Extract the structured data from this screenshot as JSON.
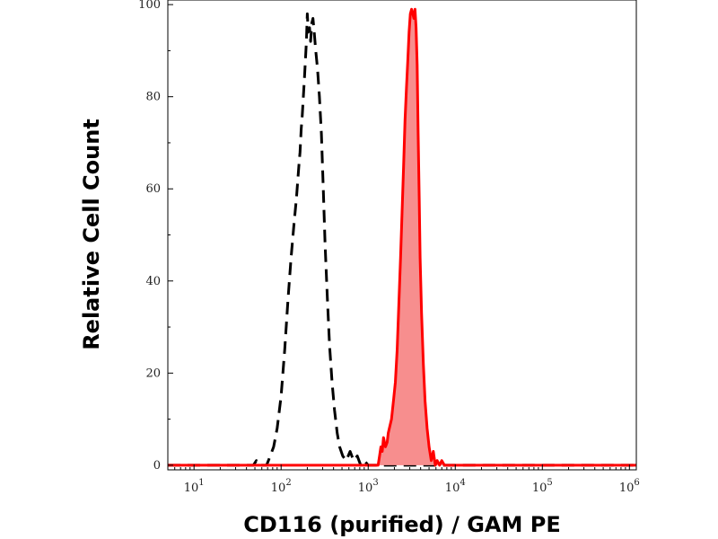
{
  "chart_data": {
    "type": "area",
    "title": "",
    "xlabel": "CD116 (purified) / GAM PE",
    "ylabel": "Relative Cell Count",
    "x_scale": "log",
    "xlim": [
      5,
      1200000
    ],
    "ylim": [
      -1,
      101
    ],
    "x_ticks": [
      {
        "value": 10,
        "base": "10",
        "exp": "1"
      },
      {
        "value": 100,
        "base": "10",
        "exp": "2"
      },
      {
        "value": 1000,
        "base": "10",
        "exp": "3"
      },
      {
        "value": 10000,
        "base": "10",
        "exp": "4"
      },
      {
        "value": 100000,
        "base": "10",
        "exp": "5"
      },
      {
        "value": 1000000,
        "base": "10",
        "exp": "6"
      }
    ],
    "y_ticks": [
      {
        "value": 0,
        "label": "0"
      },
      {
        "value": 20,
        "label": "20"
      },
      {
        "value": 40,
        "label": "40"
      },
      {
        "value": 60,
        "label": "60"
      },
      {
        "value": 80,
        "label": "80"
      },
      {
        "value": 100,
        "label": "100"
      }
    ],
    "grid": false,
    "series": [
      {
        "style": "dashed",
        "color": "#000000",
        "fill": false,
        "points": [
          [
            5,
            0
          ],
          [
            40,
            0
          ],
          [
            48,
            0
          ],
          [
            52,
            1
          ],
          [
            56,
            0
          ],
          [
            62,
            0
          ],
          [
            68,
            0
          ],
          [
            75,
            2
          ],
          [
            82,
            4
          ],
          [
            90,
            8
          ],
          [
            100,
            15
          ],
          [
            110,
            25
          ],
          [
            120,
            36
          ],
          [
            130,
            45
          ],
          [
            140,
            52
          ],
          [
            150,
            58
          ],
          [
            160,
            65
          ],
          [
            165,
            68
          ],
          [
            170,
            73
          ],
          [
            175,
            76
          ],
          [
            180,
            80
          ],
          [
            185,
            84
          ],
          [
            190,
            88
          ],
          [
            195,
            92
          ],
          [
            200,
            98
          ],
          [
            205,
            94
          ],
          [
            212,
            95
          ],
          [
            218,
            92
          ],
          [
            225,
            96
          ],
          [
            232,
            97
          ],
          [
            240,
            94
          ],
          [
            250,
            90
          ],
          [
            262,
            86
          ],
          [
            275,
            80
          ],
          [
            290,
            72
          ],
          [
            305,
            60
          ],
          [
            320,
            48
          ],
          [
            340,
            36
          ],
          [
            360,
            26
          ],
          [
            385,
            18
          ],
          [
            410,
            12
          ],
          [
            440,
            7
          ],
          [
            470,
            4
          ],
          [
            510,
            2
          ],
          [
            560,
            1
          ],
          [
            620,
            3
          ],
          [
            680,
            1
          ],
          [
            750,
            2
          ],
          [
            820,
            0
          ],
          [
            900,
            1
          ],
          [
            1000,
            0
          ],
          [
            1100,
            0
          ],
          [
            1300,
            0
          ],
          [
            10000,
            0
          ],
          [
            1200000,
            0
          ]
        ]
      },
      {
        "style": "solid",
        "color": "#ff0000",
        "fill": true,
        "fill_color": "#f78e8e",
        "points": [
          [
            5,
            0
          ],
          [
            1150,
            0
          ],
          [
            1300,
            0
          ],
          [
            1350,
            2
          ],
          [
            1400,
            4
          ],
          [
            1450,
            3
          ],
          [
            1500,
            6
          ],
          [
            1580,
            4
          ],
          [
            1650,
            5
          ],
          [
            1700,
            7
          ],
          [
            1750,
            8
          ],
          [
            1850,
            10
          ],
          [
            1950,
            14
          ],
          [
            2050,
            18
          ],
          [
            2150,
            25
          ],
          [
            2250,
            35
          ],
          [
            2350,
            45
          ],
          [
            2450,
            55
          ],
          [
            2550,
            65
          ],
          [
            2650,
            75
          ],
          [
            2750,
            82
          ],
          [
            2850,
            88
          ],
          [
            2950,
            94
          ],
          [
            3050,
            98
          ],
          [
            3150,
            99
          ],
          [
            3250,
            98
          ],
          [
            3350,
            97
          ],
          [
            3450,
            99
          ],
          [
            3550,
            95
          ],
          [
            3650,
            87
          ],
          [
            3750,
            72
          ],
          [
            3850,
            58
          ],
          [
            3950,
            45
          ],
          [
            4100,
            33
          ],
          [
            4300,
            22
          ],
          [
            4500,
            14
          ],
          [
            4750,
            8
          ],
          [
            5000,
            4
          ],
          [
            5300,
            1
          ],
          [
            5600,
            3
          ],
          [
            5900,
            0
          ],
          [
            6200,
            1
          ],
          [
            6600,
            0
          ],
          [
            7000,
            1
          ],
          [
            7500,
            0
          ],
          [
            20000,
            0
          ],
          [
            100000,
            0
          ],
          [
            1200000,
            0
          ]
        ]
      }
    ]
  }
}
